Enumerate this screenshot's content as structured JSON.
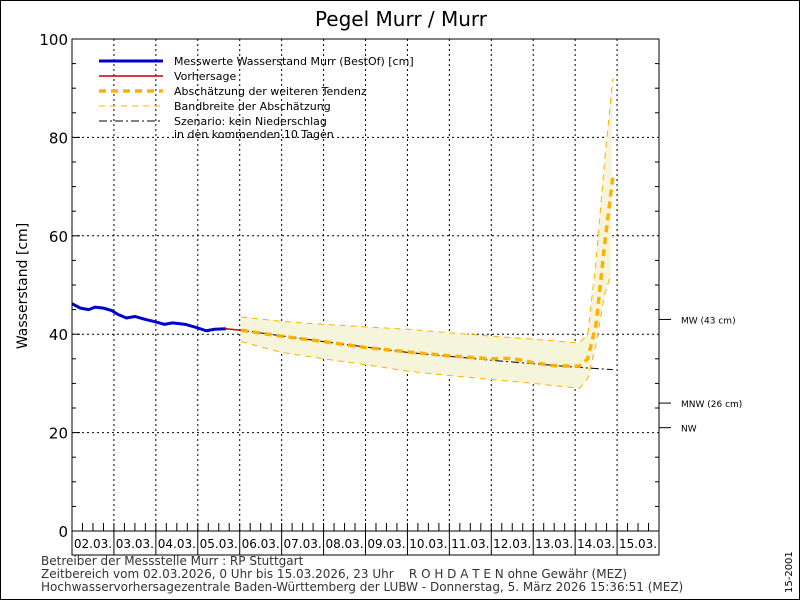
{
  "chart_data": {
    "type": "line",
    "title": "Pegel Murr / Murr",
    "ylabel": "Wasserstand [cm]",
    "ylim": [
      0,
      100
    ],
    "yticks": [
      0,
      20,
      40,
      60,
      80,
      100
    ],
    "x_categories": [
      "02.03.",
      "03.03.",
      "04.03.",
      "05.03.",
      "06.03.",
      "07.03.",
      "08.03.",
      "09.03.",
      "10.03.",
      "11.03.",
      "12.03.",
      "13.03.",
      "14.03.",
      "15.03."
    ],
    "x_unit": "days since 02.03.2026 00:00",
    "grid": true,
    "legend_position": "top-left",
    "legend": [
      "Messwerte Wasserstand Murr  (BestOf)  [cm]",
      "Vorhersage",
      "Abschätzung der weiteren Tendenz",
      "Bandbreite der Abschätzung",
      "Szenario: kein Niederschlag",
      "in den kommenden 10 Tagen"
    ],
    "series": [
      {
        "name": "Messwerte Wasserstand Murr (BestOf) [cm]",
        "color": "#0000cc",
        "points": [
          [
            0,
            46.2
          ],
          [
            0.2,
            45.3
          ],
          [
            0.4,
            45
          ],
          [
            0.55,
            45.5
          ],
          [
            0.75,
            45.3
          ],
          [
            0.95,
            44.8
          ],
          [
            1.1,
            44
          ],
          [
            1.3,
            43.3
          ],
          [
            1.5,
            43.6
          ],
          [
            1.75,
            43
          ],
          [
            2.0,
            42.5
          ],
          [
            2.2,
            42
          ],
          [
            2.4,
            42.3
          ],
          [
            2.7,
            42
          ],
          [
            2.95,
            41.4
          ],
          [
            3.2,
            40.7
          ],
          [
            3.4,
            41
          ],
          [
            3.67,
            41.1
          ]
        ]
      },
      {
        "name": "Vorhersage",
        "color": "#cc0000",
        "points": [
          [
            3.67,
            41.1
          ],
          [
            3.9,
            40.9
          ],
          [
            4.03,
            40.8
          ]
        ]
      },
      {
        "name": "Abschätzung der weiteren Tendenz",
        "color": "#ffb000",
        "points": [
          [
            4.03,
            40.8
          ],
          [
            5,
            39.6
          ],
          [
            6,
            38.5
          ],
          [
            7,
            37.3
          ],
          [
            8,
            36.4
          ],
          [
            9,
            35.6
          ],
          [
            10,
            35
          ],
          [
            10.5,
            35.1
          ],
          [
            11,
            34.2
          ],
          [
            11.5,
            33.6
          ],
          [
            12.1,
            33.5
          ],
          [
            12.3,
            35
          ],
          [
            12.5,
            42
          ],
          [
            12.7,
            58
          ],
          [
            12.9,
            72
          ]
        ]
      },
      {
        "name": "Bandbreite der Abschätzung (oben)",
        "color": "#ffb000",
        "points": [
          [
            4.03,
            43.5
          ],
          [
            5,
            42.6
          ],
          [
            6,
            42
          ],
          [
            7,
            41.5
          ],
          [
            8,
            41
          ],
          [
            9,
            40.3
          ],
          [
            10,
            39.6
          ],
          [
            11,
            39
          ],
          [
            12.1,
            38.2
          ],
          [
            12.3,
            40
          ],
          [
            12.5,
            55
          ],
          [
            12.7,
            75
          ],
          [
            12.9,
            92
          ]
        ]
      },
      {
        "name": "Bandbreite der Abschätzung (unten)",
        "color": "#ffb000",
        "points": [
          [
            4.03,
            38.5
          ],
          [
            5,
            36.3
          ],
          [
            6,
            35
          ],
          [
            7,
            33.8
          ],
          [
            8,
            32.5
          ],
          [
            9,
            31.6
          ],
          [
            10,
            30.8
          ],
          [
            11,
            30
          ],
          [
            12.1,
            29
          ],
          [
            12.3,
            31
          ],
          [
            12.5,
            38
          ],
          [
            12.7,
            48
          ],
          [
            12.85,
            52
          ]
        ]
      },
      {
        "name": "Szenario: kein Niederschlag",
        "color": "#000000",
        "points": [
          [
            4.03,
            40.8
          ],
          [
            6,
            38.5
          ],
          [
            8,
            36.3
          ],
          [
            10,
            34.7
          ],
          [
            12,
            33.3
          ],
          [
            12.9,
            32.8
          ]
        ]
      }
    ],
    "reference_lines": [
      {
        "label": "MW (43 cm)",
        "value": 43
      },
      {
        "label": "MNW (26 cm)",
        "value": 26
      },
      {
        "label": "NW",
        "value": 21
      }
    ]
  },
  "footer": {
    "line1": "Betreiber der Messstelle Murr : RP Stuttgart",
    "line2": "Zeitbereich vom 02.03.2026, 0 Uhr bis 15.03.2026, 23 Uhr    R O H D A T E N ohne Gewähr (MEZ)",
    "line3": "Hochwasservorhersagezentrale Baden-Württemberg der LUBW - Donnerstag, 5. März 2026 15:36:51 (MEZ)",
    "side": "15-2001"
  }
}
